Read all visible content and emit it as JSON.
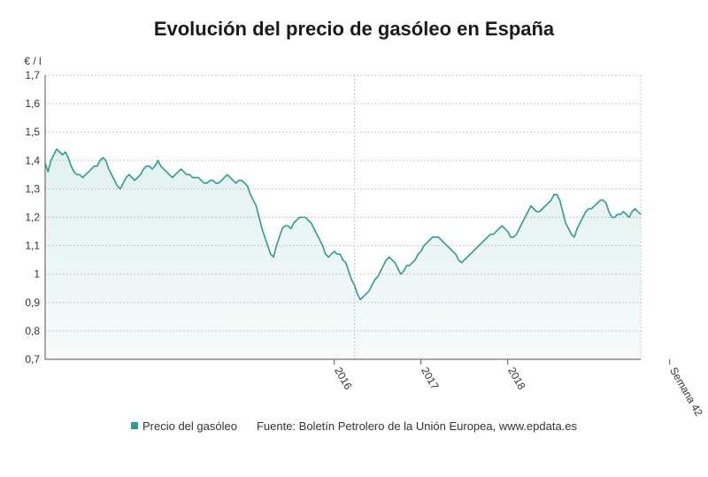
{
  "chart_data": {
    "type": "area",
    "title": "Evolución del precio de gasóleo en España",
    "ylabel": "€ / l",
    "xlabel": "",
    "ylim": [
      0.7,
      1.7
    ],
    "yticks": [
      "1,7",
      "1,6",
      "1,5",
      "1,4",
      "1,3",
      "1,2",
      "1,1",
      "1",
      "0,9",
      "0,8",
      "0,7"
    ],
    "xtick_labels": [
      "2016",
      "2017",
      "2018",
      "Semana 42"
    ],
    "xtick_index": [
      100,
      130,
      160,
      216
    ],
    "vertical_reference_index": 107,
    "grid": true,
    "legend_position": "bottom",
    "series": [
      {
        "name": "Precio del gasóleo",
        "color": "#2a9d8f",
        "values": [
          1.39,
          1.36,
          1.4,
          1.42,
          1.44,
          1.43,
          1.42,
          1.43,
          1.41,
          1.38,
          1.36,
          1.35,
          1.35,
          1.34,
          1.35,
          1.36,
          1.37,
          1.38,
          1.38,
          1.4,
          1.41,
          1.4,
          1.37,
          1.35,
          1.33,
          1.31,
          1.3,
          1.32,
          1.34,
          1.35,
          1.34,
          1.33,
          1.34,
          1.35,
          1.37,
          1.38,
          1.38,
          1.37,
          1.38,
          1.4,
          1.38,
          1.37,
          1.36,
          1.35,
          1.34,
          1.35,
          1.36,
          1.37,
          1.36,
          1.35,
          1.35,
          1.34,
          1.34,
          1.34,
          1.33,
          1.32,
          1.32,
          1.33,
          1.33,
          1.32,
          1.32,
          1.33,
          1.34,
          1.35,
          1.34,
          1.33,
          1.32,
          1.33,
          1.33,
          1.32,
          1.31,
          1.28,
          1.26,
          1.24,
          1.2,
          1.16,
          1.13,
          1.1,
          1.07,
          1.06,
          1.1,
          1.13,
          1.16,
          1.17,
          1.17,
          1.16,
          1.18,
          1.19,
          1.2,
          1.2,
          1.2,
          1.19,
          1.18,
          1.16,
          1.14,
          1.12,
          1.1,
          1.07,
          1.06,
          1.07,
          1.08,
          1.07,
          1.07,
          1.05,
          1.04,
          1.01,
          0.98,
          0.96,
          0.93,
          0.91,
          0.92,
          0.93,
          0.94,
          0.96,
          0.98,
          0.99,
          1.01,
          1.03,
          1.05,
          1.06,
          1.05,
          1.04,
          1.02,
          1.0,
          1.01,
          1.03,
          1.03,
          1.04,
          1.05,
          1.07,
          1.08,
          1.1,
          1.11,
          1.12,
          1.13,
          1.13,
          1.13,
          1.12,
          1.11,
          1.1,
          1.09,
          1.08,
          1.07,
          1.05,
          1.04,
          1.05,
          1.06,
          1.07,
          1.08,
          1.09,
          1.1,
          1.11,
          1.12,
          1.13,
          1.14,
          1.14,
          1.15,
          1.16,
          1.17,
          1.16,
          1.15,
          1.13,
          1.13,
          1.14,
          1.16,
          1.18,
          1.2,
          1.22,
          1.24,
          1.23,
          1.22,
          1.22,
          1.23,
          1.24,
          1.25,
          1.26,
          1.28,
          1.28,
          1.26,
          1.22,
          1.18,
          1.16,
          1.14,
          1.13,
          1.16,
          1.18,
          1.2,
          1.22,
          1.23,
          1.23,
          1.24,
          1.25,
          1.26,
          1.26,
          1.25,
          1.22,
          1.2,
          1.2,
          1.21,
          1.21,
          1.22,
          1.21,
          1.2,
          1.22,
          1.23,
          1.22,
          1.21
        ]
      }
    ],
    "source": "Fuente: Boletín Petrolero de la Unión Europea, www.epdata.es"
  }
}
